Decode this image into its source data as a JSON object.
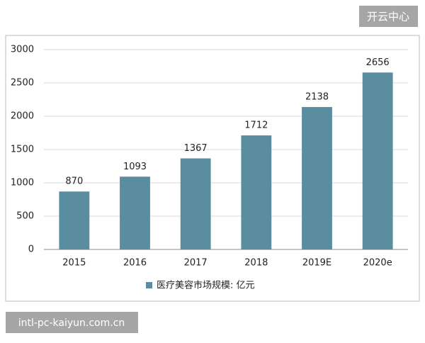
{
  "chart_data": {
    "type": "bar",
    "categories": [
      "2015",
      "2016",
      "2017",
      "2018",
      "2019E",
      "2020e"
    ],
    "series": [
      {
        "name": "医疗美容市场规模: 亿元",
        "color": "#5b8da0",
        "values": [
          870,
          1093,
          1367,
          1712,
          2138,
          2656
        ]
      }
    ],
    "ylim": [
      0,
      3000
    ],
    "yticks": [
      0,
      500,
      1000,
      1500,
      2000,
      2500,
      3000
    ],
    "grid": true,
    "legend": "bottom"
  },
  "badge": "开云中心",
  "watermark": "intl-pc-kaiyun.com.cn"
}
